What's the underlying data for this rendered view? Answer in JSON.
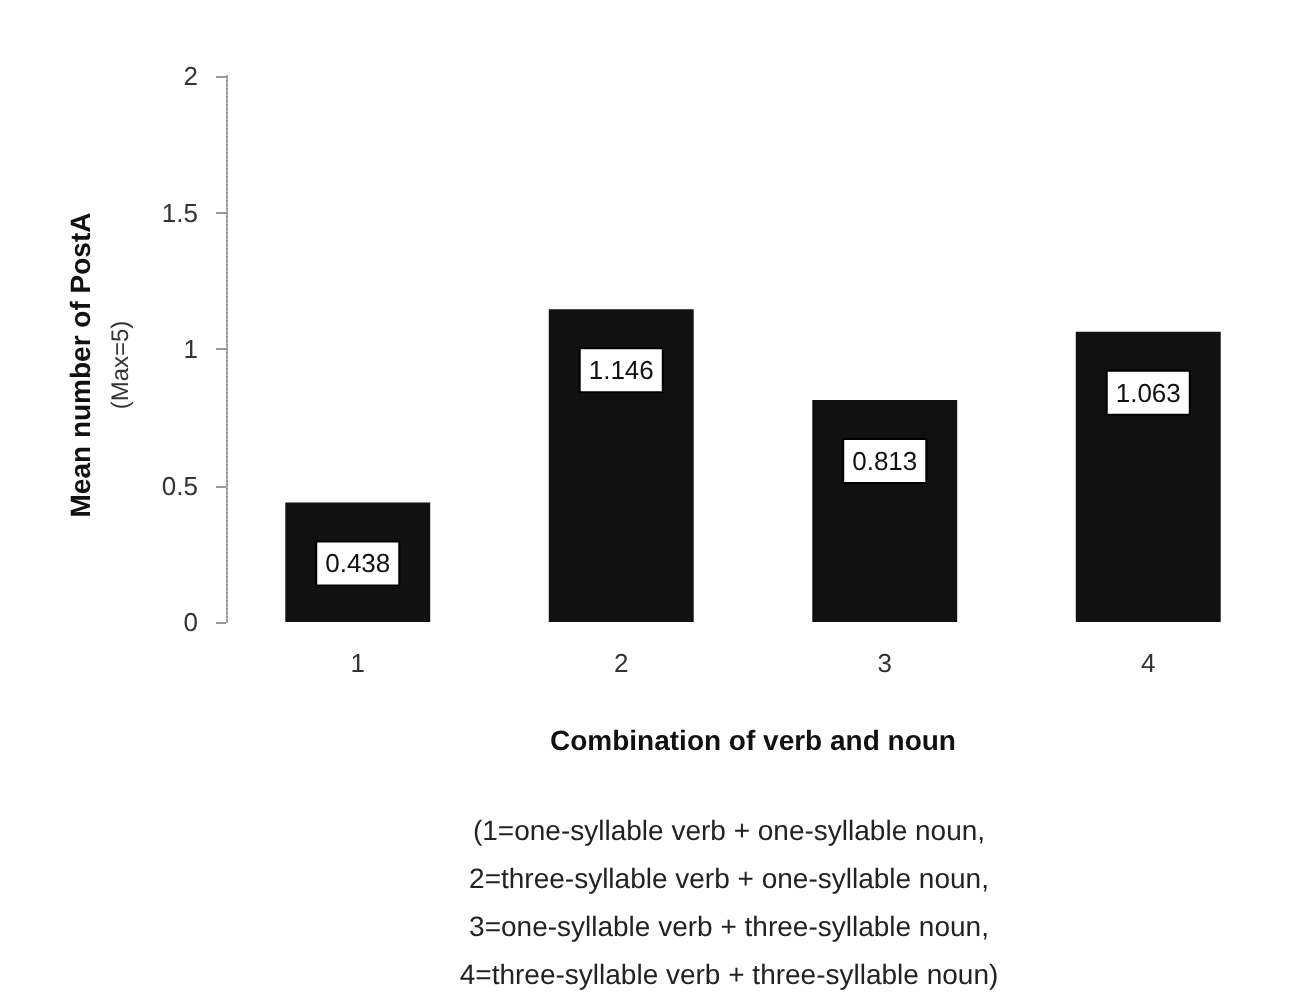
{
  "chart_data": {
    "type": "bar",
    "categories": [
      "1",
      "2",
      "3",
      "4"
    ],
    "values": [
      0.438,
      1.146,
      0.813,
      1.063
    ],
    "color": "#111111",
    "ylabel": "Mean number of PostA\n(Max=5)",
    "xlabel": "Combination of verb and noun",
    "annotations": [
      "(1=one-syllable verb + one-syllable noun,",
      "2=three-syllable verb + one-syllable noun,",
      "3=one-syllable verb + three-syllable noun,",
      "4=three-syllable verb + three-syllable noun)"
    ],
    "ylim": [
      0,
      2
    ],
    "yticks": [
      0,
      0.5,
      1,
      1.5,
      2
    ],
    "data_labels": true
  }
}
